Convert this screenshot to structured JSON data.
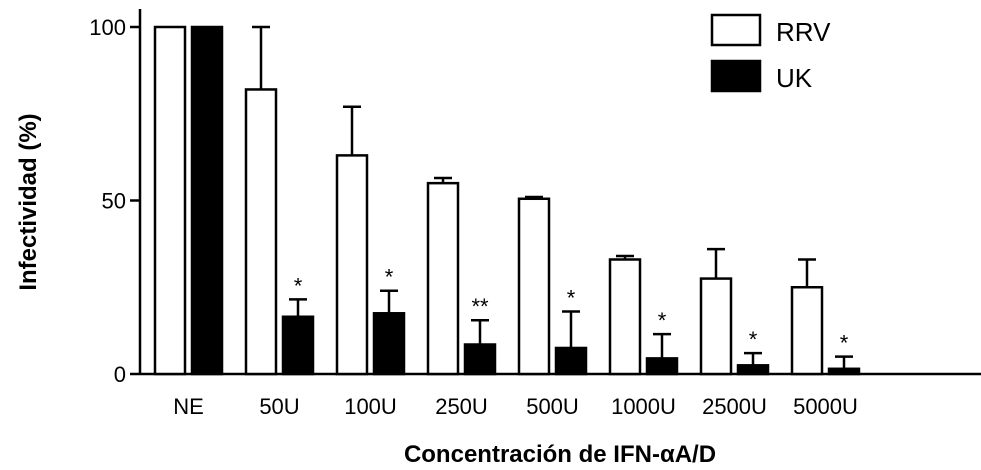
{
  "chart_data": {
    "type": "bar",
    "xlabel": "Concentración de IFN-αA/D",
    "ylabel": "Infectividad (%)",
    "ylim": [
      0,
      100
    ],
    "yticks": [
      0,
      50,
      100
    ],
    "categories": [
      "NE",
      "50U",
      "100U",
      "250U",
      "500U",
      "1000U",
      "2500U",
      "5000U"
    ],
    "legend_position": "top-right",
    "series": [
      {
        "name": "RRV",
        "fill": "#ffffff",
        "values": [
          100,
          82,
          63,
          55,
          50.5,
          33,
          27.5,
          25
        ],
        "errors": [
          0,
          18,
          14,
          1.5,
          0.5,
          1,
          8.5,
          8
        ],
        "significance": [
          "",
          "",
          "",
          "",
          "",
          "",
          "",
          ""
        ]
      },
      {
        "name": "UK",
        "fill": "#000000",
        "values": [
          100,
          16.5,
          17.5,
          8.5,
          7.5,
          4.5,
          2.5,
          1.5
        ],
        "errors": [
          0,
          5,
          6.5,
          7,
          10.5,
          7,
          3.5,
          3.5
        ],
        "significance": [
          "",
          "*",
          "*",
          "**",
          "*",
          "*",
          "*",
          "*"
        ]
      }
    ]
  }
}
